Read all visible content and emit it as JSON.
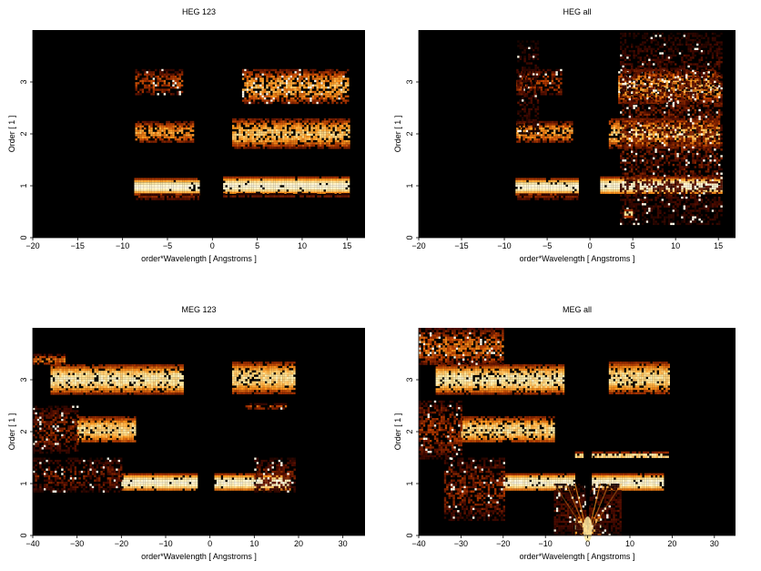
{
  "chart_data": [
    {
      "type": "heatmap",
      "title": "HEG 123",
      "xlabel": "order*Wavelength [ Angstroms ]",
      "ylabel": "Order [ 1 ]",
      "xlim": [
        -20,
        17
      ],
      "ylim": [
        0,
        4
      ],
      "xticks": [
        -20,
        -15,
        -10,
        -5,
        0,
        5,
        10,
        15
      ],
      "yticks": [
        0,
        1,
        2,
        3
      ],
      "colormap": [
        "#000000",
        "#4a0a00",
        "#b53a00",
        "#ff9a20",
        "#ffe9a0",
        "#ffffff"
      ],
      "bands": [
        {
          "order": 1,
          "x": [
            -8.7,
            -1.5
          ],
          "y": [
            0.85,
            1.15
          ],
          "intensity": 0.95,
          "texture": 0.1
        },
        {
          "order": 1,
          "x": [
            1.2,
            15.3
          ],
          "y": [
            0.85,
            1.18
          ],
          "intensity": 0.95,
          "texture": 0.12
        },
        {
          "order": 1,
          "x": [
            -8.5,
            -1.6
          ],
          "y": [
            0.75,
            0.85
          ],
          "intensity": 0.35,
          "texture": 0.4
        },
        {
          "order": 1,
          "x": [
            1.2,
            15.3
          ],
          "y": [
            0.78,
            0.86
          ],
          "intensity": 0.3,
          "texture": 0.4
        },
        {
          "order": 2,
          "x": [
            -8.6,
            -2.2
          ],
          "y": [
            1.85,
            2.25
          ],
          "intensity": 0.7,
          "texture": 0.5
        },
        {
          "order": 2,
          "x": [
            2.2,
            15.2
          ],
          "y": [
            1.75,
            2.3
          ],
          "intensity": 0.8,
          "texture": 0.45
        },
        {
          "order": 3,
          "x": [
            -8.6,
            -3.3
          ],
          "y": [
            2.75,
            3.25
          ],
          "intensity": 0.5,
          "texture": 0.75
        },
        {
          "order": 3,
          "x": [
            3.3,
            15.2
          ],
          "y": [
            2.6,
            3.25
          ],
          "intensity": 0.75,
          "texture": 0.55
        }
      ]
    },
    {
      "type": "heatmap",
      "title": "HEG all",
      "xlabel": "order*Wavelength [ Angstroms ]",
      "ylabel": "Order [ 1 ]",
      "xlim": [
        -20,
        17
      ],
      "ylim": [
        0,
        4
      ],
      "xticks": [
        -20,
        -15,
        -10,
        -5,
        0,
        5,
        10,
        15
      ],
      "yticks": [
        0,
        1,
        2,
        3
      ],
      "colormap": [
        "#000000",
        "#4a0a00",
        "#b53a00",
        "#ff9a20",
        "#ffe9a0",
        "#ffffff"
      ],
      "bands": [
        {
          "order": 1,
          "x": [
            -8.7,
            -1.5
          ],
          "y": [
            0.85,
            1.15
          ],
          "intensity": 0.95,
          "texture": 0.1
        },
        {
          "order": 1,
          "x": [
            1.2,
            15.3
          ],
          "y": [
            0.85,
            1.18
          ],
          "intensity": 0.95,
          "texture": 0.12
        },
        {
          "order": 1,
          "x": [
            -8.5,
            -1.6
          ],
          "y": [
            0.75,
            0.85
          ],
          "intensity": 0.35,
          "texture": 0.4
        },
        {
          "order": 2,
          "x": [
            -8.6,
            -2.2
          ],
          "y": [
            1.85,
            2.25
          ],
          "intensity": 0.7,
          "texture": 0.5
        },
        {
          "order": 2,
          "x": [
            2.2,
            15.2
          ],
          "y": [
            1.75,
            2.3
          ],
          "intensity": 0.8,
          "texture": 0.45
        },
        {
          "order": 3,
          "x": [
            -8.6,
            -3.3
          ],
          "y": [
            2.75,
            3.25
          ],
          "intensity": 0.5,
          "texture": 0.75
        },
        {
          "order": 3,
          "x": [
            3.3,
            15.2
          ],
          "y": [
            2.6,
            3.25
          ],
          "intensity": 0.75,
          "texture": 0.55
        },
        {
          "order": 0,
          "x": [
            3.5,
            15.3
          ],
          "y": [
            0.25,
            3.95
          ],
          "intensity": 0.35,
          "texture": 0.9
        },
        {
          "order": 0,
          "x": [
            -8.5,
            -6.0
          ],
          "y": [
            2.0,
            3.8
          ],
          "intensity": 0.25,
          "texture": 0.97
        },
        {
          "order": 0,
          "x": [
            4.0,
            5.0
          ],
          "y": [
            0.42,
            0.55
          ],
          "intensity": 0.9,
          "texture": 0.2
        }
      ]
    },
    {
      "type": "heatmap",
      "title": "MEG 123",
      "xlabel": "order*Wavelength [ Angstroms ]",
      "ylabel": "Order [ 1 ]",
      "xlim": [
        -40,
        35
      ],
      "ylim": [
        0,
        4
      ],
      "xticks": [
        -40,
        -30,
        -20,
        -10,
        0,
        10,
        20,
        30
      ],
      "yticks": [
        0,
        1,
        2,
        3
      ],
      "colormap": [
        "#000000",
        "#4a0a00",
        "#b53a00",
        "#ff9a20",
        "#ffe9a0",
        "#ffffff"
      ],
      "bands": [
        {
          "order": 1,
          "x": [
            -20,
            -3
          ],
          "y": [
            0.88,
            1.2
          ],
          "intensity": 0.95,
          "texture": 0.15
        },
        {
          "order": 1,
          "x": [
            1,
            18
          ],
          "y": [
            0.88,
            1.2
          ],
          "intensity": 0.95,
          "texture": 0.15
        },
        {
          "order": 1,
          "x": [
            -40,
            -20
          ],
          "y": [
            0.85,
            1.5
          ],
          "intensity": 0.35,
          "texture": 0.85
        },
        {
          "order": 1,
          "x": [
            10,
            19
          ],
          "y": [
            0.85,
            1.5
          ],
          "intensity": 0.35,
          "texture": 0.8
        },
        {
          "order": 2,
          "x": [
            -30,
            -17
          ],
          "y": [
            1.8,
            2.3
          ],
          "intensity": 0.85,
          "texture": 0.35
        },
        {
          "order": 2,
          "x": [
            -40,
            -30
          ],
          "y": [
            1.6,
            2.5
          ],
          "intensity": 0.4,
          "texture": 0.8
        },
        {
          "order": 3,
          "x": [
            -36,
            -6
          ],
          "y": [
            2.75,
            3.3
          ],
          "intensity": 0.9,
          "texture": 0.3
        },
        {
          "order": 3,
          "x": [
            -40,
            -33
          ],
          "y": [
            3.3,
            3.5
          ],
          "intensity": 0.6,
          "texture": 0.5
        },
        {
          "order": 3,
          "x": [
            5,
            19
          ],
          "y": [
            2.75,
            3.35
          ],
          "intensity": 0.85,
          "texture": 0.3
        },
        {
          "order": 3,
          "x": [
            8,
            17
          ],
          "y": [
            2.45,
            2.55
          ],
          "intensity": 0.5,
          "texture": 0.6
        }
      ]
    },
    {
      "type": "heatmap",
      "title": "MEG all",
      "xlabel": "order*Wavelength [ Angstroms ]",
      "ylabel": "Order [ 1 ]",
      "xlim": [
        -40,
        35
      ],
      "ylim": [
        0,
        4
      ],
      "xticks": [
        -40,
        -30,
        -20,
        -10,
        0,
        10,
        20,
        30
      ],
      "yticks": [
        0,
        1,
        2,
        3
      ],
      "colormap": [
        "#000000",
        "#4a0a00",
        "#b53a00",
        "#ff9a20",
        "#ffe9a0",
        "#ffffff"
      ],
      "bands": [
        {
          "order": 1,
          "x": [
            -20,
            -3
          ],
          "y": [
            0.88,
            1.2
          ],
          "intensity": 0.95,
          "texture": 0.15
        },
        {
          "order": 1,
          "x": [
            1,
            18
          ],
          "y": [
            0.88,
            1.2
          ],
          "intensity": 0.95,
          "texture": 0.15
        },
        {
          "order": 1,
          "x": [
            -34,
            -20
          ],
          "y": [
            0.3,
            1.5
          ],
          "intensity": 0.4,
          "texture": 0.8
        },
        {
          "order": 2,
          "x": [
            -30,
            -8
          ],
          "y": [
            1.8,
            2.3
          ],
          "intensity": 0.85,
          "texture": 0.35
        },
        {
          "order": 2,
          "x": [
            -40,
            -30
          ],
          "y": [
            1.5,
            2.6
          ],
          "intensity": 0.45,
          "texture": 0.75
        },
        {
          "order": 2,
          "x": [
            -3,
            19
          ],
          "y": [
            1.5,
            1.62
          ],
          "intensity": 0.9,
          "texture": 0.3
        },
        {
          "order": 3,
          "x": [
            -36,
            -6
          ],
          "y": [
            2.75,
            3.3
          ],
          "intensity": 0.9,
          "texture": 0.3
        },
        {
          "order": 3,
          "x": [
            -40,
            -20
          ],
          "y": [
            3.3,
            4.0
          ],
          "intensity": 0.6,
          "texture": 0.6
        },
        {
          "order": 3,
          "x": [
            5,
            19
          ],
          "y": [
            2.75,
            3.35
          ],
          "intensity": 0.85,
          "texture": 0.3
        },
        {
          "order": 0,
          "x": [
            -3,
            3
          ],
          "y": [
            0,
            0.4
          ],
          "intensity": 0.9,
          "texture": 0.3
        },
        {
          "order": 0,
          "x": [
            -8,
            8
          ],
          "y": [
            0,
            1.0
          ],
          "intensity": 0.25,
          "texture": 0.6
        }
      ]
    }
  ]
}
